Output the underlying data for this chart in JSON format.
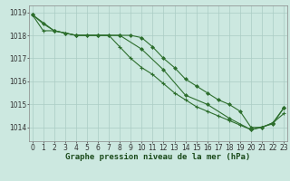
{
  "background_color": "#cce8e0",
  "grid_color": "#aaccc4",
  "line_color": "#2d6e2d",
  "marker_color": "#2d6e2d",
  "xlabel": "Graphe pression niveau de la mer (hPa)",
  "xlabel_fontsize": 6.5,
  "tick_fontsize": 5.5,
  "xlim": [
    -0.3,
    23.3
  ],
  "ylim": [
    1013.4,
    1019.3
  ],
  "yticks": [
    1014,
    1015,
    1016,
    1017,
    1018,
    1019
  ],
  "xticks": [
    0,
    1,
    2,
    3,
    4,
    5,
    6,
    7,
    8,
    9,
    10,
    11,
    12,
    13,
    14,
    15,
    16,
    17,
    18,
    19,
    20,
    21,
    22,
    23
  ],
  "line1_x": [
    0,
    1,
    2,
    3,
    4,
    5,
    6,
    7,
    8,
    9,
    10,
    11,
    12,
    13,
    14,
    15,
    16,
    17,
    18,
    19,
    20,
    21,
    22,
    23
  ],
  "line1_y": [
    1018.9,
    1018.2,
    1018.2,
    1018.1,
    1018.0,
    1018.0,
    1018.0,
    1018.0,
    1017.5,
    1017.0,
    1016.6,
    1016.3,
    1015.9,
    1015.5,
    1015.2,
    1014.9,
    1014.7,
    1014.5,
    1014.3,
    1014.1,
    1013.9,
    1014.0,
    1014.2,
    1014.6
  ],
  "line2_x": [
    0,
    1,
    2,
    3,
    4,
    5,
    6,
    7,
    8,
    9,
    10,
    11,
    12,
    13,
    14,
    15,
    16,
    17,
    18,
    19,
    20,
    21,
    22,
    23
  ],
  "line2_y": [
    1018.9,
    1018.5,
    1018.2,
    1018.1,
    1018.0,
    1018.0,
    1018.0,
    1018.0,
    1018.0,
    1018.0,
    1017.9,
    1017.5,
    1017.0,
    1016.6,
    1016.1,
    1015.8,
    1015.5,
    1015.2,
    1015.0,
    1014.7,
    1014.0,
    1014.0,
    1014.2,
    1014.85
  ],
  "line3_x": [
    0,
    2,
    4,
    6,
    8,
    10,
    12,
    14,
    16,
    18,
    20,
    22,
    23
  ],
  "line3_y": [
    1018.9,
    1018.2,
    1018.0,
    1018.0,
    1018.0,
    1017.4,
    1016.5,
    1015.4,
    1015.0,
    1014.4,
    1013.9,
    1014.15,
    1014.85
  ]
}
